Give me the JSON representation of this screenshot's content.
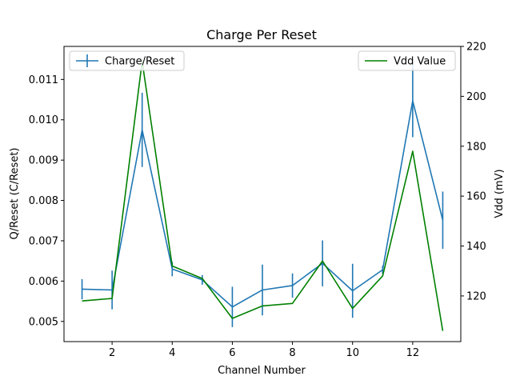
{
  "chart_data": {
    "type": "line",
    "title": "Charge Per Reset",
    "xlabel": "Channel Number",
    "ylabel_left": "Q/Reset (C/Reset)",
    "ylabel_right": "Vdd (mV)",
    "xlim": [
      0.4,
      13.6
    ],
    "ylim_left": [
      0.0045,
      0.01182
    ],
    "ylim_right": [
      101.7,
      220
    ],
    "x_ticks": [
      2,
      4,
      6,
      8,
      10,
      12
    ],
    "y_left_ticks": [
      0.005,
      0.006,
      0.007,
      0.008,
      0.009,
      0.01,
      0.011
    ],
    "y_left_tick_labels": [
      "0.005",
      "0.006",
      "0.007",
      "0.008",
      "0.009",
      "0.010",
      "0.011"
    ],
    "y_right_ticks": [
      120,
      140,
      160,
      180,
      200,
      220
    ],
    "grid": false,
    "series": [
      {
        "name": "Charge/Reset",
        "axis": "left",
        "color": "#1f77b4",
        "x": [
          1,
          2,
          3,
          4,
          5,
          6,
          7,
          8,
          9,
          10,
          11,
          12,
          13
        ],
        "y": [
          0.0058,
          0.00578,
          0.00975,
          0.0063,
          0.00603,
          0.00536,
          0.00578,
          0.00589,
          0.00644,
          0.00576,
          0.00628,
          0.01047,
          0.00751
        ],
        "yerr": [
          0.00025,
          0.00048,
          0.00092,
          0.00018,
          0.00012,
          0.0005,
          0.00063,
          0.0003,
          0.00057,
          0.00067,
          0.0001,
          0.0009,
          0.00071
        ]
      },
      {
        "name": "Vdd Value",
        "axis": "right",
        "color": "#008000",
        "x": [
          1,
          2,
          3,
          4,
          5,
          6,
          7,
          8,
          9,
          10,
          11,
          12,
          13
        ],
        "y": [
          118,
          119,
          214,
          132,
          127,
          111,
          116,
          117,
          134,
          115,
          128,
          178,
          106
        ]
      }
    ],
    "legends": [
      {
        "label": "Charge/Reset",
        "placement": "top-left"
      },
      {
        "label": "Vdd Value",
        "placement": "top-right"
      }
    ]
  }
}
